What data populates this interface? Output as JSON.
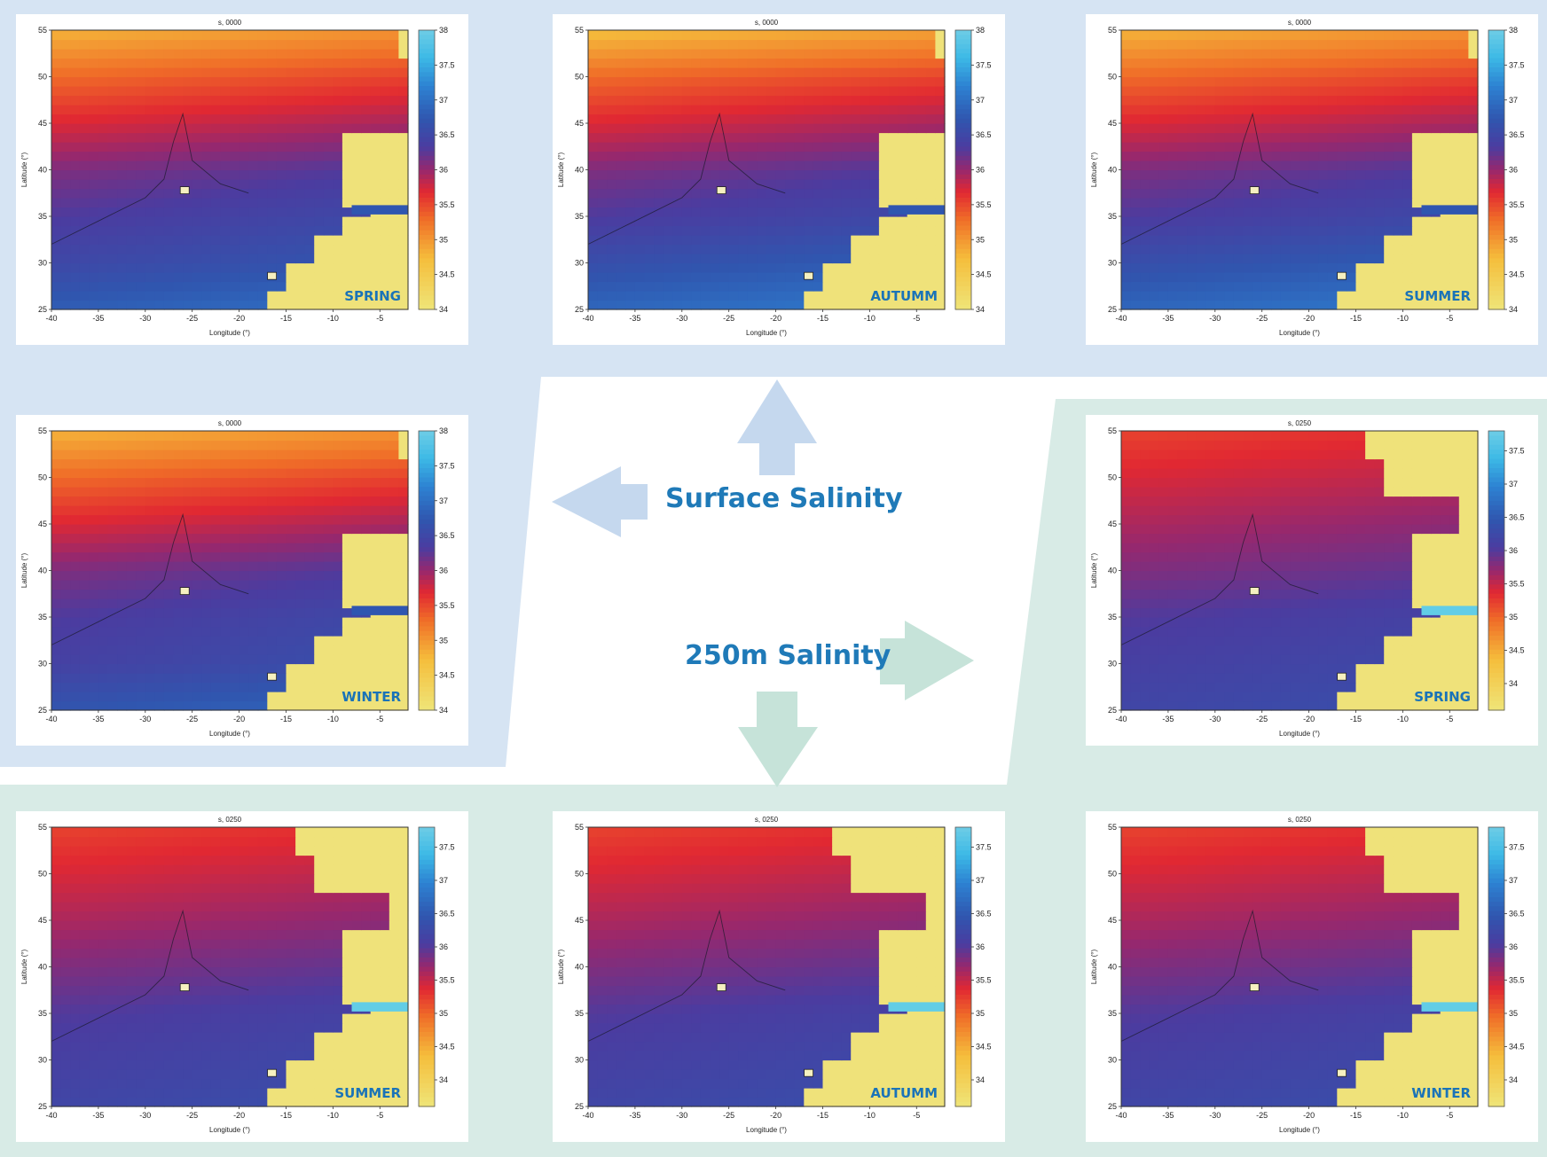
{
  "colors": {
    "surface_bg": "#d6e4f3",
    "deep_bg": "#d8ebe6",
    "surface_arrow": "#c5d8ee",
    "deep_arrow": "#c6e3d9",
    "text_blue": "#1f7ab8",
    "land": "#efe27a"
  },
  "center": {
    "surface_label": "Surface Salinity",
    "deep_label": "250m Salinity"
  },
  "chart_data": [
    {
      "type": "heatmap",
      "title": "s, 0000",
      "season": "SPRING",
      "depth": "surface",
      "xlabel": "Longitude (°)",
      "ylabel": "Latitude (°)",
      "xlim": [
        -40,
        -2
      ],
      "ylim": [
        25,
        55
      ],
      "xticks": [
        "-40",
        "-35",
        "-30",
        "-25",
        "-20",
        "-15",
        "-10",
        "-5"
      ],
      "yticks": [
        "25",
        "30",
        "35",
        "40",
        "45",
        "50",
        "55"
      ],
      "colorbar": {
        "min": 34,
        "max": 38,
        "ticks": [
          "38",
          "37.5",
          "37",
          "36.5",
          "36",
          "35.5",
          "35",
          "34.5",
          "34"
        ]
      },
      "salinity_by_latitude": {
        "latitude": [
          25,
          30,
          35,
          40,
          45,
          50,
          55
        ],
        "salinity": [
          36.8,
          36.5,
          36.3,
          36.1,
          35.7,
          35.3,
          34.8
        ]
      }
    },
    {
      "type": "heatmap",
      "title": "s, 0000",
      "season": "AUTUMM",
      "depth": "surface",
      "xlabel": "Longitude (°)",
      "ylabel": "Latitude (°)",
      "xlim": [
        -40,
        -2
      ],
      "ylim": [
        25,
        55
      ],
      "xticks": [
        "-40",
        "-35",
        "-30",
        "-25",
        "-20",
        "-15",
        "-10",
        "-5"
      ],
      "yticks": [
        "25",
        "30",
        "35",
        "40",
        "45",
        "50",
        "55"
      ],
      "colorbar": {
        "min": 34,
        "max": 38,
        "ticks": [
          "38",
          "37.5",
          "37",
          "36.5",
          "36",
          "35.5",
          "35",
          "34.5",
          "34"
        ]
      },
      "salinity_by_latitude": {
        "latitude": [
          25,
          30,
          35,
          40,
          45,
          50,
          55
        ],
        "salinity": [
          36.9,
          36.6,
          36.3,
          36.1,
          35.7,
          35.3,
          34.7
        ]
      }
    },
    {
      "type": "heatmap",
      "title": "s, 0000",
      "season": "SUMMER",
      "depth": "surface",
      "xlabel": "Longitude (°)",
      "ylabel": "Latitude (°)",
      "xlim": [
        -40,
        -2
      ],
      "ylim": [
        25,
        55
      ],
      "xticks": [
        "-40",
        "-35",
        "-30",
        "-25",
        "-20",
        "-15",
        "-10",
        "-5"
      ],
      "yticks": [
        "25",
        "30",
        "35",
        "40",
        "45",
        "50",
        "55"
      ],
      "colorbar": {
        "min": 34,
        "max": 38,
        "ticks": [
          "38",
          "37.5",
          "37",
          "36.5",
          "36",
          "35.5",
          "35",
          "34.5",
          "34"
        ]
      },
      "salinity_by_latitude": {
        "latitude": [
          25,
          30,
          35,
          40,
          45,
          50,
          55
        ],
        "salinity": [
          36.9,
          36.6,
          36.3,
          36.1,
          35.7,
          35.3,
          34.8
        ]
      }
    },
    {
      "type": "heatmap",
      "title": "s, 0000",
      "season": "WINTER",
      "depth": "surface",
      "xlabel": "Longitude (°)",
      "ylabel": "Latitude (°)",
      "xlim": [
        -40,
        -2
      ],
      "ylim": [
        25,
        55
      ],
      "xticks": [
        "-40",
        "-35",
        "-30",
        "-25",
        "-20",
        "-15",
        "-10",
        "-5"
      ],
      "yticks": [
        "25",
        "30",
        "35",
        "40",
        "45",
        "50",
        "55"
      ],
      "colorbar": {
        "min": 34,
        "max": 38,
        "ticks": [
          "38",
          "37.5",
          "37",
          "36.5",
          "36",
          "35.5",
          "35",
          "34.5",
          "34"
        ]
      },
      "salinity_by_latitude": {
        "latitude": [
          25,
          30,
          35,
          40,
          45,
          50,
          55
        ],
        "salinity": [
          36.7,
          36.4,
          36.3,
          36.1,
          35.7,
          35.3,
          34.8
        ]
      }
    },
    {
      "type": "heatmap",
      "title": "s, 0250",
      "season": "SPRING",
      "depth": "250m",
      "xlabel": "Longitude (°)",
      "ylabel": "Latitude (°)",
      "xlim": [
        -40,
        -2
      ],
      "ylim": [
        25,
        55
      ],
      "xticks": [
        "-40",
        "-35",
        "-30",
        "-25",
        "-20",
        "-15",
        "-10",
        "-5"
      ],
      "yticks": [
        "25",
        "30",
        "35",
        "40",
        "45",
        "50",
        "55"
      ],
      "colorbar": {
        "min": 33.6,
        "max": 37.8,
        "ticks": [
          "37.5",
          "37",
          "36.5",
          "36",
          "35.5",
          "35",
          "34.5",
          "34"
        ]
      },
      "salinity_by_latitude": {
        "latitude": [
          25,
          30,
          35,
          40,
          45,
          50,
          55
        ],
        "salinity": [
          36.2,
          36.1,
          36.0,
          35.8,
          35.6,
          35.4,
          35.2
        ]
      }
    },
    {
      "type": "heatmap",
      "title": "s, 0250",
      "season": "SUMMER",
      "depth": "250m",
      "xlabel": "Longitude (°)",
      "ylabel": "Latitude (°)",
      "xlim": [
        -40,
        -2
      ],
      "ylim": [
        25,
        55
      ],
      "xticks": [
        "-40",
        "-35",
        "-30",
        "-25",
        "-20",
        "-15",
        "-10",
        "-5"
      ],
      "yticks": [
        "25",
        "30",
        "35",
        "40",
        "45",
        "50",
        "55"
      ],
      "colorbar": {
        "min": 33.6,
        "max": 37.8,
        "ticks": [
          "37.5",
          "37",
          "36.5",
          "36",
          "35.5",
          "35",
          "34.5",
          "34"
        ]
      },
      "salinity_by_latitude": {
        "latitude": [
          25,
          30,
          35,
          40,
          45,
          50,
          55
        ],
        "salinity": [
          36.2,
          36.1,
          36.0,
          35.8,
          35.6,
          35.4,
          35.2
        ]
      }
    },
    {
      "type": "heatmap",
      "title": "s, 0250",
      "season": "AUTUMM",
      "depth": "250m",
      "xlabel": "Longitude (°)",
      "ylabel": "Latitude (°)",
      "xlim": [
        -40,
        -2
      ],
      "ylim": [
        25,
        55
      ],
      "xticks": [
        "-40",
        "-35",
        "-30",
        "-25",
        "-20",
        "-15",
        "-10",
        "-5"
      ],
      "yticks": [
        "25",
        "30",
        "35",
        "40",
        "45",
        "50",
        "55"
      ],
      "colorbar": {
        "min": 33.6,
        "max": 37.8,
        "ticks": [
          "37.5",
          "37",
          "36.5",
          "36",
          "35.5",
          "35",
          "34.5",
          "34"
        ]
      },
      "salinity_by_latitude": {
        "latitude": [
          25,
          30,
          35,
          40,
          45,
          50,
          55
        ],
        "salinity": [
          36.2,
          36.1,
          36.0,
          35.8,
          35.6,
          35.4,
          35.2
        ]
      }
    },
    {
      "type": "heatmap",
      "title": "s, 0250",
      "season": "WINTER",
      "depth": "250m",
      "xlabel": "Longitude (°)",
      "ylabel": "Latitude (°)",
      "xlim": [
        -40,
        -2
      ],
      "ylim": [
        25,
        55
      ],
      "xticks": [
        "-40",
        "-35",
        "-30",
        "-25",
        "-20",
        "-15",
        "-10",
        "-5"
      ],
      "yticks": [
        "25",
        "30",
        "35",
        "40",
        "45",
        "50",
        "55"
      ],
      "colorbar": {
        "min": 33.6,
        "max": 37.8,
        "ticks": [
          "37.5",
          "37",
          "36.5",
          "36",
          "35.5",
          "35",
          "34.5",
          "34"
        ]
      },
      "salinity_by_latitude": {
        "latitude": [
          25,
          30,
          35,
          40,
          45,
          50,
          55
        ],
        "salinity": [
          36.2,
          36.1,
          36.0,
          35.8,
          35.6,
          35.4,
          35.2
        ]
      }
    }
  ]
}
